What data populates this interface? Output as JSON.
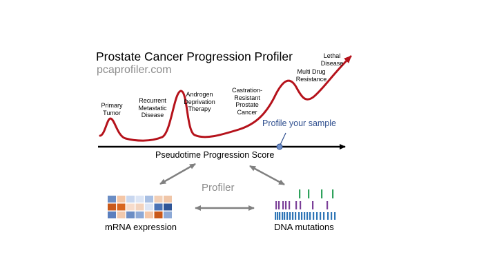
{
  "title": "Prostate Cancer Progression Profiler",
  "website": "pcaprofiler.com",
  "stages": [
    {
      "label": "Primary\nTumor"
    },
    {
      "label": "Recurrent\nMetastatic\nDisease"
    },
    {
      "label": "Androgen\nDeprivation\nTherapy"
    },
    {
      "label": "Castration-\nResistant\nProstate\nCancer"
    },
    {
      "label": "Multi Drug\nResistance"
    },
    {
      "label": "Lethal\nDisease"
    }
  ],
  "axis_label": "Pseudotime Progression Score",
  "profile_label": "Profile your sample",
  "profiler_label": "Profiler",
  "mrna_label": "mRNA expression",
  "dna_label": "DNA mutations",
  "colors": {
    "curve": "#b5121b",
    "axis": "#000000",
    "marker": "#6f8fc9",
    "profile_text": "#2f4f8f",
    "gray_arrows": "#808080"
  },
  "heatmap_colors": [
    [
      "#6b8dc4",
      "#f4c6a6",
      "#c9d7ef",
      "#dce5f5",
      "#a8bfe3",
      "#f2cfb6",
      "#f0c6a8"
    ],
    [
      "#c9591a",
      "#d8651e",
      "#f7dccb",
      "#f3d3bd",
      "#dce5f5",
      "#4b73b5",
      "#2f5597"
    ],
    [
      "#5b7fbe",
      "#f1c9ad",
      "#6b8dc4",
      "#8da9d6",
      "#f4c6a6",
      "#c9591a",
      "#8da9d6"
    ]
  ],
  "mutation_colors": {
    "top": "#2ea25c",
    "middle": "#7b3f98",
    "bottom": "#2e75b6"
  }
}
